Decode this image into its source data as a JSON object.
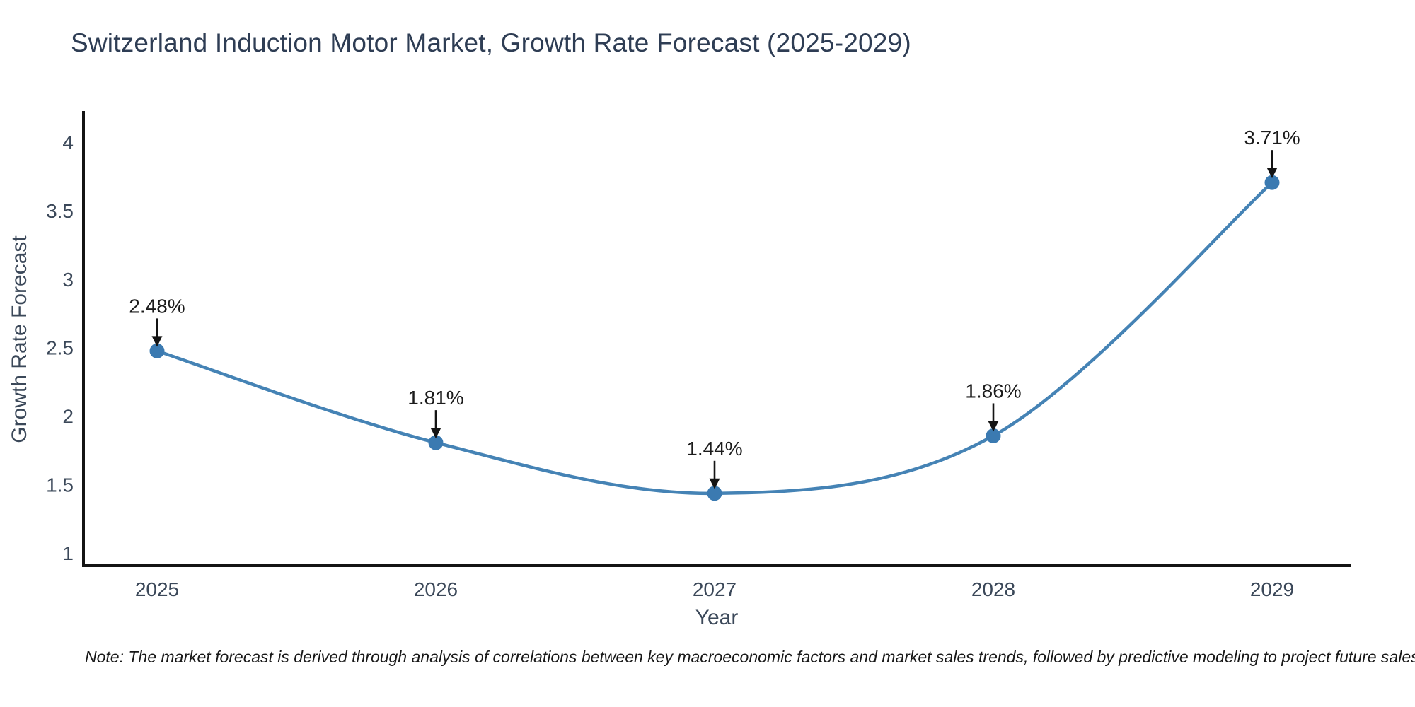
{
  "chart_data": {
    "type": "line",
    "title": "Switzerland Induction Motor Market, Growth Rate Forecast (2025-2029)",
    "xlabel": "Year",
    "ylabel": "Growth Rate Forecast",
    "x": [
      2025,
      2026,
      2027,
      2028,
      2029
    ],
    "values": [
      2.48,
      1.81,
      1.44,
      1.86,
      3.71
    ],
    "point_labels": [
      "2.48%",
      "1.81%",
      "1.44%",
      "1.86%",
      "3.71%"
    ],
    "yticks": [
      1,
      1.5,
      2,
      2.5,
      3,
      3.5,
      4
    ],
    "ylim": [
      1,
      4
    ],
    "grid": false,
    "legend": "none",
    "line_shape": "spline",
    "marker": "circle",
    "annotation_style": "label-with-down-arrow",
    "colors": {
      "line": "#4583b5",
      "marker": "#3b7ab1",
      "axis": "#141414",
      "arrow": "#141414",
      "annotation_text": "#1c1c1c",
      "tick_text": "#3b4859",
      "axis_title_text": "#3b4859",
      "title_text": "#2e3d54",
      "note_text": "#181818",
      "background": "#ffffff"
    }
  },
  "footnote": "Note: The market forecast is derived through analysis of correlations between key macroeconomic factors and market sales trends, followed by predictive modeling to project future sales"
}
